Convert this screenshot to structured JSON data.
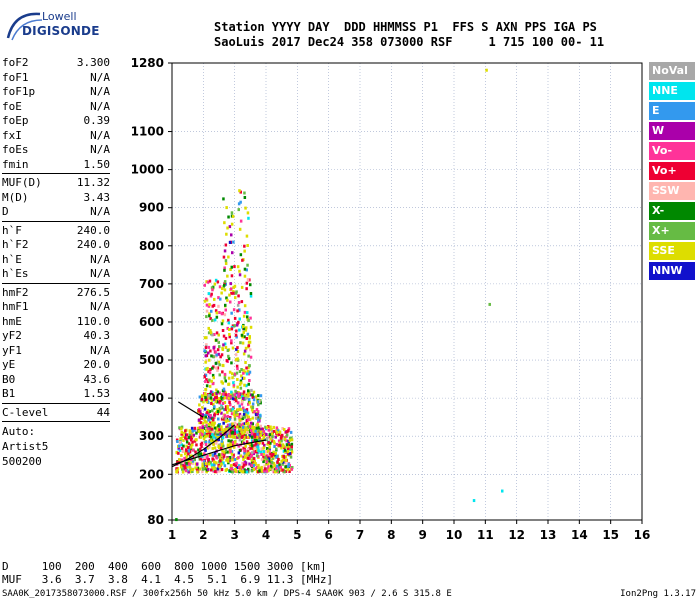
{
  "logo": {
    "line1": "Lowell",
    "line2": "DIGISONDE"
  },
  "header": {
    "line1": "Station YYYY DAY  DDD HHMMSS P1  FFS S AXN PPS IGA PS",
    "line2": "SaoLuis 2017 Dec24 358 073000 RSF     1 715 100 00- 11"
  },
  "params": {
    "group1": [
      {
        "k": "foF2",
        "v": "3.300"
      },
      {
        "k": "foF1",
        "v": "N/A"
      },
      {
        "k": "foF1p",
        "v": "N/A"
      },
      {
        "k": "foE",
        "v": "N/A"
      },
      {
        "k": "foEp",
        "v": "0.39"
      },
      {
        "k": "fxI",
        "v": "N/A"
      },
      {
        "k": "foEs",
        "v": "N/A"
      },
      {
        "k": "fmin",
        "v": "1.50"
      }
    ],
    "group2": [
      {
        "k": "MUF(D)",
        "v": "11.32"
      },
      {
        "k": "M(D)",
        "v": "3.43"
      },
      {
        "k": "D",
        "v": "N/A"
      }
    ],
    "group3": [
      {
        "k": "h`F",
        "v": "240.0"
      },
      {
        "k": "h`F2",
        "v": "240.0"
      },
      {
        "k": "h`E",
        "v": "N/A"
      },
      {
        "k": "h`Es",
        "v": "N/A"
      }
    ],
    "group4": [
      {
        "k": "hmF2",
        "v": "276.5"
      },
      {
        "k": "hmF1",
        "v": "N/A"
      },
      {
        "k": "hmE",
        "v": "110.0"
      },
      {
        "k": "yF2",
        "v": "40.3"
      },
      {
        "k": "yF1",
        "v": "N/A"
      },
      {
        "k": "yE",
        "v": "20.0"
      },
      {
        "k": "B0",
        "v": "43.6"
      },
      {
        "k": "B1",
        "v": "1.53"
      }
    ],
    "group5": [
      {
        "k": "C-level",
        "v": "44"
      }
    ],
    "auto": [
      "Auto:",
      "Artist5",
      "500200"
    ]
  },
  "legend": [
    {
      "label": "NoVal",
      "color": "#a8a8a8"
    },
    {
      "label": "NNE",
      "color": "#00e5ee"
    },
    {
      "label": "E",
      "color": "#3399ee"
    },
    {
      "label": "W",
      "color": "#aa00aa"
    },
    {
      "label": "Vo-",
      "color": "#ff3399"
    },
    {
      "label": "Vo+",
      "color": "#ee0033"
    },
    {
      "label": "SSW",
      "color": "#ffb6b0"
    },
    {
      "label": "X-",
      "color": "#008800"
    },
    {
      "label": "X+",
      "color": "#66bb44"
    },
    {
      "label": "SSE",
      "color": "#dddd00"
    },
    {
      "label": "NNW",
      "color": "#1111cc"
    }
  ],
  "footer": {
    "line1": "D     100  200  400  600  800 1000 1500 3000 [km]",
    "line2": "MUF   3.6  3.7  3.8  4.1  4.5  5.1  6.9 11.3 [MHz]",
    "line3": "SAA0K_2017358073000.RSF / 300fx256h 50 kHz 5.0 km / DPS-4 SAA0K 903 / 2.6 S 315.8 E",
    "version": "Ion2Png 1.3.17"
  },
  "chart_data": {
    "type": "scatter",
    "xlim": [
      1,
      16
    ],
    "ylim": [
      80,
      1280
    ],
    "xticks": [
      1,
      2,
      3,
      4,
      5,
      6,
      7,
      8,
      9,
      10,
      11,
      12,
      13,
      14,
      15,
      16
    ],
    "yticks": [
      80,
      200,
      300,
      400,
      500,
      600,
      700,
      800,
      900,
      1000,
      1100,
      1280
    ],
    "grid": true,
    "legend_position": "right",
    "trace_lines": [
      {
        "color": "#000000",
        "points": [
          [
            1.0,
            220
          ],
          [
            1.5,
            240
          ],
          [
            2.0,
            265
          ],
          [
            2.5,
            295
          ],
          [
            3.0,
            330
          ]
        ]
      },
      {
        "color": "#000000",
        "points": [
          [
            1.0,
            225
          ],
          [
            2.0,
            250
          ],
          [
            3.0,
            275
          ],
          [
            4.0,
            290
          ]
        ]
      },
      {
        "color": "#000000",
        "points": [
          [
            1.2,
            390
          ],
          [
            1.6,
            370
          ],
          [
            2.0,
            350
          ]
        ]
      }
    ],
    "isolated_points": [
      {
        "x": 11.0,
        "y": 1265,
        "series": "SSE"
      },
      {
        "x": 11.1,
        "y": 650,
        "series": "X+"
      },
      {
        "x": 10.6,
        "y": 135,
        "series": "NNE"
      },
      {
        "x": 11.5,
        "y": 160,
        "series": "NNE"
      },
      {
        "x": 1.1,
        "y": 85,
        "series": "X-"
      }
    ],
    "echo_cloud": {
      "note_series_weights": {
        "SSE": 0.32,
        "Vo+": 0.18,
        "Vo-": 0.12,
        "X-": 0.1,
        "X+": 0.08,
        "E": 0.06,
        "NNE": 0.04,
        "W": 0.04,
        "SSW": 0.03,
        "NNW": 0.02,
        "NoVal": 0.01
      },
      "clusters": [
        {
          "x_min": 1.1,
          "x_max": 4.8,
          "y_min": 210,
          "y_max": 330,
          "density": 900
        },
        {
          "x_min": 1.8,
          "x_max": 3.8,
          "y_min": 300,
          "y_max": 420,
          "density": 500
        },
        {
          "x_min": 2.0,
          "x_max": 3.5,
          "y_min": 400,
          "y_max": 720,
          "density": 350
        },
        {
          "x_min": 2.6,
          "x_max": 3.4,
          "y_min": 700,
          "y_max": 950,
          "density": 60
        }
      ]
    }
  }
}
